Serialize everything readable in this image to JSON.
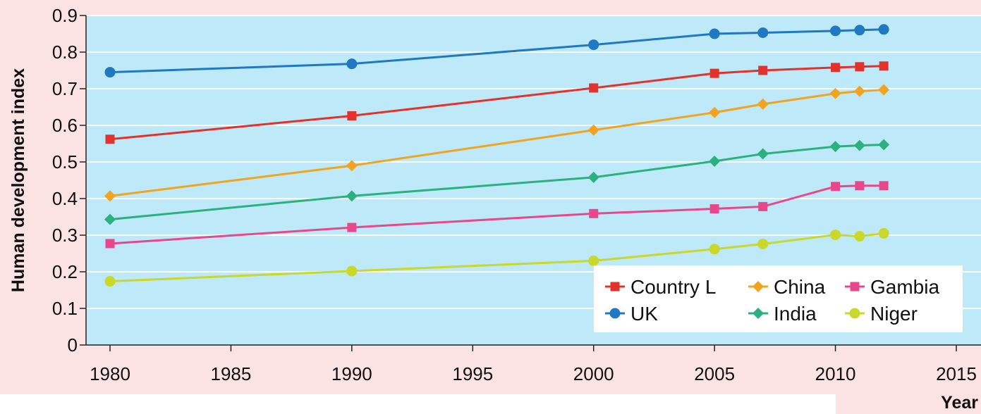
{
  "chart_data": {
    "type": "line",
    "title": "",
    "xlabel": "Year",
    "ylabel": "Human development index",
    "xlim": [
      1979,
      2015
    ],
    "ylim": [
      0,
      0.9
    ],
    "x_ticks": [
      1980,
      1985,
      1990,
      1995,
      2000,
      2005,
      2010,
      2015
    ],
    "y_ticks": [
      0,
      0.1,
      0.2,
      0.3,
      0.4,
      0.5,
      0.6,
      0.7,
      0.8,
      0.9
    ],
    "y_tick_labels": [
      "0",
      "0.1",
      "0.2",
      "0.3",
      "0.4",
      "0.5",
      "0.6",
      "0.7",
      "0.8",
      "0.9"
    ],
    "grid": true,
    "plot_background": "#bde9f8",
    "page_background": "#fbe3e4",
    "legend_position": "bottom-right",
    "x": [
      1980,
      1990,
      2000,
      2005,
      2007,
      2010,
      2011,
      2012
    ],
    "series": [
      {
        "name": "UK",
        "color": "#1f78c1",
        "marker": "circle",
        "values": [
          0.745,
          0.768,
          0.82,
          0.85,
          0.853,
          0.858,
          0.86,
          0.862
        ]
      },
      {
        "name": "Country L",
        "color": "#e3312b",
        "marker": "square",
        "values": [
          0.562,
          0.626,
          0.702,
          0.742,
          0.75,
          0.758,
          0.76,
          0.762
        ]
      },
      {
        "name": "China",
        "color": "#f2a41e",
        "marker": "diamond",
        "values": [
          0.407,
          0.49,
          0.587,
          0.635,
          0.658,
          0.687,
          0.693,
          0.697
        ]
      },
      {
        "name": "India",
        "color": "#2bb07f",
        "marker": "diamond",
        "values": [
          0.343,
          0.407,
          0.458,
          0.502,
          0.522,
          0.542,
          0.545,
          0.547
        ]
      },
      {
        "name": "Gambia",
        "color": "#e8488b",
        "marker": "square",
        "values": [
          0.277,
          0.321,
          0.359,
          0.372,
          0.378,
          0.433,
          0.435,
          0.435
        ]
      },
      {
        "name": "Niger",
        "color": "#c9d82b",
        "marker": "circle",
        "values": [
          0.174,
          0.202,
          0.23,
          0.262,
          0.276,
          0.301,
          0.297,
          0.305
        ]
      }
    ],
    "legend_order": [
      "Country L",
      "China",
      "Gambia",
      "UK",
      "India",
      "Niger"
    ]
  }
}
